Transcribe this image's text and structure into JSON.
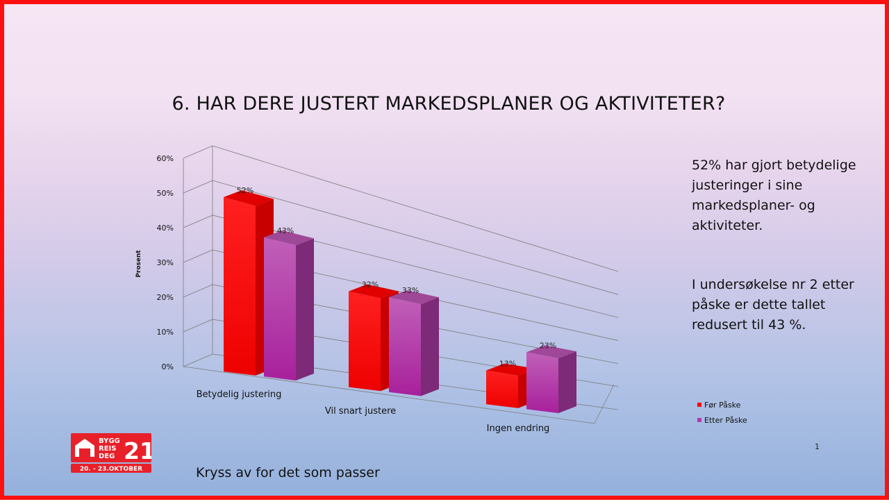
{
  "slide": {
    "title": "6. HAR DERE JUSTERT MARKEDSPLANER OG AKTIVITETER?",
    "side_text_1": "52% har gjort betydelige justeringer i sine markedsplaner- og aktiviteter.",
    "side_text_2": "I undersøkelse nr 2 etter påske er dette tallet redusert til 43 %.",
    "footer": "Kryss av for det som passer",
    "page_number": "1"
  },
  "logo": {
    "line1": "BYGG",
    "line2": "REIS",
    "line3": "DEG",
    "number": "21",
    "dates": "20. - 23.OKTOBER",
    "color": "#e8202a"
  },
  "chart_data": {
    "type": "bar",
    "categories": [
      "Betydelig justering",
      "Vil snart justere",
      "Ingen endring"
    ],
    "series": [
      {
        "name": "Før Påske",
        "values": [
          52,
          32,
          13
        ],
        "labels": [
          "52%",
          "32%",
          "13%"
        ],
        "color": "#ff0000"
      },
      {
        "name": "Etter Påske",
        "values": [
          43,
          33,
          23
        ],
        "labels": [
          "43%",
          "33%",
          "23%"
        ],
        "color": "#b03ca8"
      }
    ],
    "ylabel": "Prosent",
    "ylim": [
      0,
      60
    ],
    "yticks": [
      "0%",
      "10%",
      "20%",
      "30%",
      "40%",
      "50%",
      "60%"
    ],
    "grid": true,
    "legend_position": "right",
    "perspective": "3d"
  }
}
